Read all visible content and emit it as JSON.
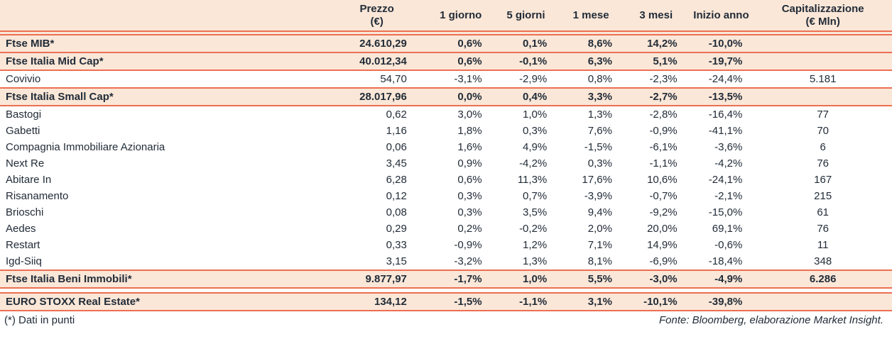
{
  "colors": {
    "accent_line": "#ec6f52",
    "highlight_bg": "#fae7d8",
    "text": "#222c38"
  },
  "table": {
    "headers": {
      "name": "",
      "prezzo_line1": "Prezzo",
      "prezzo_line2": "(€)",
      "periods": [
        "1 giorno",
        "5 giorni",
        "1 mese",
        "3 mesi",
        "Inizio anno"
      ],
      "cap_line1": "Capitalizzazione",
      "cap_line2": "(€ Mln)"
    },
    "rows": [
      {
        "name": "Ftse MIB*",
        "prezzo": "24.610,29",
        "d1": "0,6%",
        "d5": "0,1%",
        "m1": "8,6%",
        "m3": "14,2%",
        "ytd": "-10,0%",
        "cap": "",
        "type": "index"
      },
      {
        "name": "Ftse Italia Mid Cap*",
        "prezzo": "40.012,34",
        "d1": "0,6%",
        "d5": "-0,1%",
        "m1": "6,3%",
        "m3": "5,1%",
        "ytd": "-19,7%",
        "cap": "",
        "type": "index"
      },
      {
        "name": "Covivio",
        "prezzo": "54,70",
        "d1": "-3,1%",
        "d5": "-2,9%",
        "m1": "0,8%",
        "m3": "-2,3%",
        "ytd": "-24,4%",
        "cap": "5.181",
        "type": "stock"
      },
      {
        "name": "Ftse Italia Small Cap*",
        "prezzo": "28.017,96",
        "d1": "0,0%",
        "d5": "0,4%",
        "m1": "3,3%",
        "m3": "-2,7%",
        "ytd": "-13,5%",
        "cap": "",
        "type": "index"
      },
      {
        "name": "Bastogi",
        "prezzo": "0,62",
        "d1": "3,0%",
        "d5": "1,0%",
        "m1": "1,3%",
        "m3": "-2,8%",
        "ytd": "-16,4%",
        "cap": "77",
        "type": "stock"
      },
      {
        "name": "Gabetti",
        "prezzo": "1,16",
        "d1": "1,8%",
        "d5": "0,3%",
        "m1": "7,6%",
        "m3": "-0,9%",
        "ytd": "-41,1%",
        "cap": "70",
        "type": "stock"
      },
      {
        "name": "Compagnia Immobiliare Azionaria",
        "prezzo": "0,06",
        "d1": "1,6%",
        "d5": "4,9%",
        "m1": "-1,5%",
        "m3": "-6,1%",
        "ytd": "-3,6%",
        "cap": "6",
        "type": "stock"
      },
      {
        "name": "Next Re",
        "prezzo": "3,45",
        "d1": "0,9%",
        "d5": "-4,2%",
        "m1": "0,3%",
        "m3": "-1,1%",
        "ytd": "-4,2%",
        "cap": "76",
        "type": "stock"
      },
      {
        "name": "Abitare In",
        "prezzo": "6,28",
        "d1": "0,6%",
        "d5": "11,3%",
        "m1": "17,6%",
        "m3": "10,6%",
        "ytd": "-24,1%",
        "cap": "167",
        "type": "stock"
      },
      {
        "name": "Risanamento",
        "prezzo": "0,12",
        "d1": "0,3%",
        "d5": "0,7%",
        "m1": "-3,9%",
        "m3": "-0,7%",
        "ytd": "-2,1%",
        "cap": "215",
        "type": "stock"
      },
      {
        "name": "Brioschi",
        "prezzo": "0,08",
        "d1": "0,3%",
        "d5": "3,5%",
        "m1": "9,4%",
        "m3": "-9,2%",
        "ytd": "-15,0%",
        "cap": "61",
        "type": "stock"
      },
      {
        "name": "Aedes",
        "prezzo": "0,29",
        "d1": "0,2%",
        "d5": "-0,2%",
        "m1": "2,0%",
        "m3": "20,0%",
        "ytd": "69,1%",
        "cap": "76",
        "type": "stock"
      },
      {
        "name": "Restart",
        "prezzo": "0,33",
        "d1": "-0,9%",
        "d5": "1,2%",
        "m1": "7,1%",
        "m3": "14,9%",
        "ytd": "-0,6%",
        "cap": "11",
        "type": "stock"
      },
      {
        "name": "Igd-Siiq",
        "prezzo": "3,15",
        "d1": "-3,2%",
        "d5": "1,3%",
        "m1": "8,1%",
        "m3": "-6,9%",
        "ytd": "-18,4%",
        "cap": "348",
        "type": "stock"
      },
      {
        "name": "Ftse Italia Beni Immobili*",
        "prezzo": "9.877,97",
        "d1": "-1,7%",
        "d5": "1,0%",
        "m1": "5,5%",
        "m3": "-3,0%",
        "ytd": "-4,9%",
        "cap": "6.286",
        "type": "index"
      },
      {
        "name": "EURO STOXX Real Estate*",
        "prezzo": "134,12",
        "d1": "-1,5%",
        "d5": "-1,1%",
        "m1": "3,1%",
        "m3": "-10,1%",
        "ytd": "-39,8%",
        "cap": "",
        "type": "index",
        "gap_before": true
      }
    ]
  },
  "footer": {
    "note": "(*) Dati in punti",
    "source": "Fonte: Bloomberg, elaborazione Market Insight."
  }
}
